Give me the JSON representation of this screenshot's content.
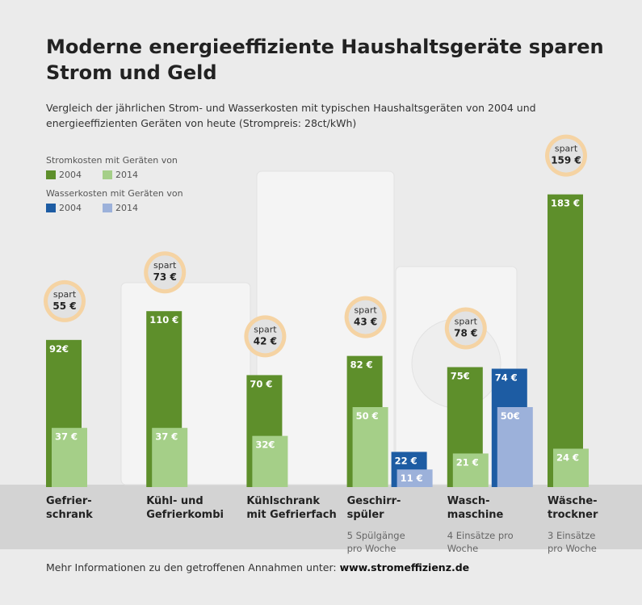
{
  "chart_data": {
    "type": "bar",
    "title": "Moderne energieeffiziente Haushaltsgeräte sparen Strom und Geld",
    "subtitle": "Vergleich der jährlichen Strom- und Wasserkosten mit typischen Haushaltsgeräten von 2004 und energieeffizienten Geräten von heute (Strompreis: 28ct/kWh)",
    "categories": [
      "Gefrier-\nschrank",
      "Kühl- und\nGefrierkombi",
      "Kühlschrank\nmit Gefrierfach",
      "Geschirr-\nspüler",
      "Wasch-\nmaschine",
      "Wäsche-\ntrockner"
    ],
    "notes": [
      null,
      null,
      null,
      "5 Spülgänge\npro Woche",
      "4 Einsätze pro\nWoche",
      "3 Einsätze\npro Woche"
    ],
    "groups": [
      {
        "name": "Stromkosten mit Geräten von",
        "series": [
          {
            "name": "2004",
            "color": "#5e8f2b",
            "values": [
              92,
              110,
              70,
              82,
              75,
              183
            ],
            "value_labels": [
              "92€",
              "110 €",
              "70 €",
              "82 €",
              "75€",
              "183 €"
            ]
          },
          {
            "name": "2014",
            "color": "#a5cf88",
            "values": [
              37,
              37,
              32,
              50,
              21,
              24
            ],
            "value_labels": [
              "37 €",
              "37 €",
              "32€",
              "50 €",
              "21 €",
              "24 €"
            ]
          }
        ]
      },
      {
        "name": "Wasserkosten mit Geräten von",
        "series": [
          {
            "name": "2004",
            "color": "#1d5ca3",
            "values": [
              null,
              null,
              null,
              22,
              74,
              null
            ],
            "value_labels": [
              null,
              null,
              null,
              "22 €",
              "74 €",
              null
            ]
          },
          {
            "name": "2014",
            "color": "#9cb1da",
            "values": [
              null,
              null,
              null,
              11,
              50,
              null
            ],
            "value_labels": [
              null,
              null,
              null,
              "11 €",
              "50€",
              null
            ]
          }
        ]
      }
    ],
    "savings": {
      "label": "spart",
      "values": [
        55,
        73,
        42,
        43,
        78,
        159
      ],
      "value_labels": [
        "55 €",
        "73 €",
        "42 €",
        "43 €",
        "78 €",
        "159 €"
      ]
    },
    "footer": {
      "text": "Mehr Informationen zu den getroffenen Annahmen unter: ",
      "link": "www.stromeffizienz.de"
    }
  }
}
